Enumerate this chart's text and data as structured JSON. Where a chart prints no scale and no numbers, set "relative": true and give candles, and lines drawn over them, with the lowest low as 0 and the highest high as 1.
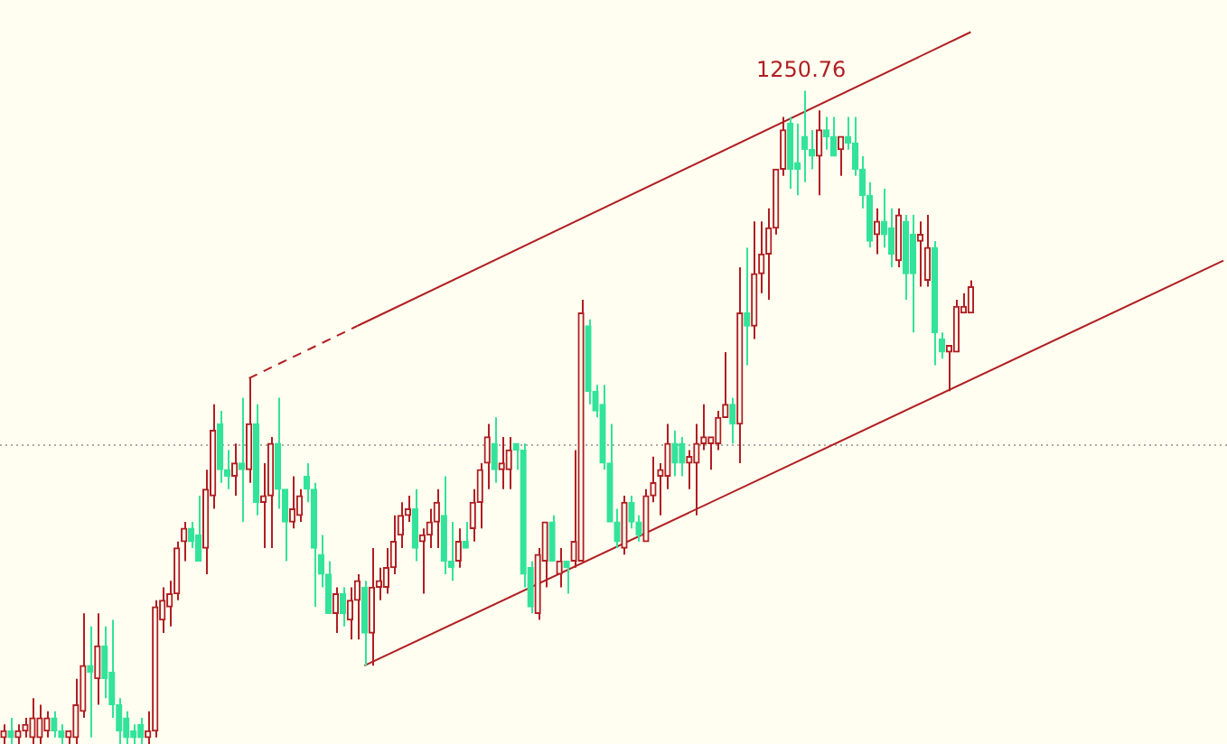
{
  "chart_data": {
    "type": "candlestick",
    "relative": true,
    "categories": [
      null,
      null,
      null,
      null,
      null,
      null,
      null,
      null,
      null,
      null,
      null,
      null,
      null,
      null,
      null,
      null,
      null,
      null,
      null,
      null,
      null,
      null,
      null,
      null,
      null,
      null,
      null,
      null,
      null,
      null,
      null,
      null,
      null,
      null,
      null,
      null,
      null,
      null,
      null,
      null,
      null,
      null,
      null,
      null,
      null,
      null,
      null,
      null,
      null,
      null,
      null,
      null,
      null,
      null,
      null,
      null,
      null,
      null,
      null,
      null,
      null,
      null,
      null,
      null,
      null,
      null,
      null,
      null,
      null,
      null,
      null,
      null,
      null,
      null,
      null,
      null,
      null,
      null,
      null,
      null,
      null,
      null,
      null,
      null,
      null,
      null,
      null,
      null,
      null,
      null,
      null,
      null,
      null,
      null,
      null,
      null,
      null,
      null,
      null,
      null,
      null,
      null,
      null,
      null,
      null,
      null,
      null,
      null,
      null,
      null,
      null,
      null,
      null,
      null,
      null,
      null,
      null,
      null,
      null,
      null,
      null,
      null,
      null,
      null,
      null,
      null,
      null,
      null,
      null,
      null,
      null,
      null,
      null,
      null,
      null,
      null,
      null,
      null,
      null,
      null,
      null,
      null,
      null,
      null,
      null,
      null,
      null,
      null,
      null,
      null,
      null,
      null,
      null,
      null,
      null,
      null,
      null,
      null,
      null,
      null,
      null,
      null,
      null,
      null,
      null,
      null,
      null,
      null,
      null,
      null
    ],
    "ohlc": [
      [
        0.01,
        0.03,
        0,
        0.02
      ],
      [
        0.02,
        0.04,
        0,
        0.01
      ],
      [
        0.01,
        0.03,
        0,
        0.02
      ],
      [
        0.02,
        0.04,
        0.01,
        0.03
      ],
      [
        0.01,
        0.07,
        0,
        0.04
      ],
      [
        0.01,
        0.06,
        0,
        0.04
      ],
      [
        0.02,
        0.05,
        0.01,
        0.04
      ],
      [
        0.04,
        0.05,
        0.01,
        0.02
      ],
      [
        0.02,
        0.03,
        0,
        0.01
      ],
      [
        0.01,
        0.02,
        0,
        0.02
      ],
      [
        0.01,
        0.1,
        0,
        0.06
      ],
      [
        0.05,
        0.2,
        0.04,
        0.12
      ],
      [
        0.12,
        0.18,
        0.01,
        0.11
      ],
      [
        0.1,
        0.2,
        0.06,
        0.15
      ],
      [
        0.15,
        0.18,
        0.07,
        0.1
      ],
      [
        0.11,
        0.19,
        0.04,
        0.06
      ],
      [
        0.06,
        0.07,
        0,
        0.02
      ],
      [
        0.04,
        0.05,
        0,
        0.01
      ],
      [
        0.02,
        0.03,
        0,
        0.01
      ],
      [
        0.03,
        0.04,
        0,
        0.01
      ],
      [
        0.01,
        0.05,
        0,
        0.02
      ],
      [
        0.02,
        0.22,
        0.01,
        0.21
      ],
      [
        0.19,
        0.24,
        0.17,
        0.22
      ],
      [
        0.21,
        0.25,
        0.18,
        0.23
      ],
      [
        0.23,
        0.31,
        0.22,
        0.3
      ],
      [
        0.31,
        0.34,
        0.28,
        0.33
      ],
      [
        0.33,
        0.34,
        0.3,
        0.31
      ],
      [
        0.32,
        0.38,
        0.28,
        0.28
      ],
      [
        0.3,
        0.42,
        0.26,
        0.39
      ],
      [
        0.38,
        0.52,
        0.36,
        0.48
      ],
      [
        0.49,
        0.51,
        0.4,
        0.42
      ],
      [
        0.42,
        0.45,
        0.39,
        0.41
      ],
      [
        0.41,
        0.46,
        0.38,
        0.43
      ],
      [
        0.43,
        0.53,
        0.34,
        0.42
      ],
      [
        0.42,
        0.56,
        0.4,
        0.49
      ],
      [
        0.49,
        0.52,
        0.35,
        0.37
      ],
      [
        0.37,
        0.43,
        0.3,
        0.38
      ],
      [
        0.38,
        0.47,
        0.3,
        0.46
      ],
      [
        0.46,
        0.53,
        0.36,
        0.39
      ],
      [
        0.39,
        0.39,
        0.28,
        0.34
      ],
      [
        0.34,
        0.41,
        0.33,
        0.36
      ],
      [
        0.35,
        0.39,
        0.34,
        0.38
      ],
      [
        0.41,
        0.43,
        0.37,
        0.39
      ],
      [
        0.39,
        0.4,
        0.21,
        0.3
      ],
      [
        0.29,
        0.32,
        0.24,
        0.26
      ],
      [
        0.26,
        0.28,
        0.2,
        0.2
      ],
      [
        0.2,
        0.24,
        0.17,
        0.23
      ],
      [
        0.23,
        0.24,
        0.18,
        0.2
      ],
      [
        0.19,
        0.24,
        0.16,
        0.22
      ],
      [
        0.22,
        0.26,
        0.16,
        0.25
      ],
      [
        0.24,
        0.25,
        0.12,
        0.17
      ],
      [
        0.17,
        0.3,
        0.12,
        0.24
      ],
      [
        0.24,
        0.27,
        0.22,
        0.25
      ],
      [
        0.24,
        0.3,
        0.23,
        0.27
      ],
      [
        0.27,
        0.35,
        0.26,
        0.31
      ],
      [
        0.32,
        0.37,
        0.3,
        0.35
      ],
      [
        0.35,
        0.38,
        0.34,
        0.36
      ],
      [
        0.36,
        0.39,
        0.28,
        0.3
      ],
      [
        0.31,
        0.33,
        0.23,
        0.32
      ],
      [
        0.32,
        0.36,
        0.3,
        0.34
      ],
      [
        0.34,
        0.39,
        0.3,
        0.37
      ],
      [
        0.35,
        0.41,
        0.26,
        0.28
      ],
      [
        0.28,
        0.34,
        0.25,
        0.27
      ],
      [
        0.28,
        0.33,
        0.27,
        0.31
      ],
      [
        0.31,
        0.34,
        0.3,
        0.3
      ],
      [
        0.33,
        0.39,
        0.31,
        0.37
      ],
      [
        0.37,
        0.43,
        0.33,
        0.42
      ],
      [
        0.43,
        0.49,
        0.39,
        0.47
      ],
      [
        0.46,
        0.5,
        0.4,
        0.42
      ],
      [
        0.42,
        0.47,
        0.39,
        0.43
      ],
      [
        0.42,
        0.47,
        0.39,
        0.45
      ],
      [
        0.46,
        0.46,
        0.42,
        0.45
      ],
      [
        0.45,
        0.46,
        0.24,
        0.26
      ],
      [
        0.27,
        0.28,
        0.2,
        0.21
      ],
      [
        0.2,
        0.3,
        0.19,
        0.29
      ],
      [
        0.28,
        0.34,
        0.24,
        0.34
      ],
      [
        0.34,
        0.35,
        0.28,
        0.28
      ],
      [
        0.26,
        0.3,
        0.24,
        0.28
      ],
      [
        0.28,
        0.28,
        0.23,
        0.27
      ],
      [
        0.28,
        0.45,
        0.27,
        0.31
      ],
      [
        0.28,
        0.68,
        0.28,
        0.66
      ],
      [
        0.64,
        0.65,
        0.52,
        0.54
      ],
      [
        0.54,
        0.55,
        0.5,
        0.51
      ],
      [
        0.52,
        0.55,
        0.42,
        0.43
      ],
      [
        0.43,
        0.49,
        0.34,
        0.34
      ],
      [
        0.34,
        0.36,
        0.3,
        0.31
      ],
      [
        0.3,
        0.38,
        0.29,
        0.37
      ],
      [
        0.37,
        0.38,
        0.33,
        0.34
      ],
      [
        0.34,
        0.35,
        0.31,
        0.32
      ],
      [
        0.31,
        0.39,
        0.31,
        0.38
      ],
      [
        0.38,
        0.44,
        0.37,
        0.4
      ],
      [
        0.41,
        0.43,
        0.35,
        0.42
      ],
      [
        0.41,
        0.49,
        0.39,
        0.46
      ],
      [
        0.46,
        0.48,
        0.41,
        0.43
      ],
      [
        0.46,
        0.47,
        0.41,
        0.43
      ],
      [
        0.43,
        0.45,
        0.39,
        0.44
      ],
      [
        0.43,
        0.49,
        0.35,
        0.46
      ],
      [
        0.46,
        0.52,
        0.45,
        0.47
      ],
      [
        0.46,
        0.47,
        0.42,
        0.47
      ],
      [
        0.46,
        0.51,
        0.45,
        0.5
      ],
      [
        0.5,
        0.6,
        0.5,
        0.52
      ],
      [
        0.52,
        0.53,
        0.46,
        0.49
      ],
      [
        0.49,
        0.73,
        0.43,
        0.66
      ],
      [
        0.66,
        0.76,
        0.58,
        0.64
      ],
      [
        0.64,
        0.8,
        0.62,
        0.72
      ],
      [
        0.72,
        0.8,
        0.69,
        0.75
      ],
      [
        0.75,
        0.82,
        0.68,
        0.79
      ],
      [
        0.79,
        0.88,
        0.78,
        0.88
      ],
      [
        0.88,
        0.96,
        0.87,
        0.94
      ],
      [
        0.95,
        0.96,
        0.85,
        0.88
      ],
      [
        0.89,
        0.95,
        0.84,
        0.88
      ],
      [
        0.93,
        1,
        0.86,
        0.91
      ],
      [
        0.91,
        0.94,
        0.88,
        0.9
      ],
      [
        0.9,
        0.97,
        0.84,
        0.94
      ],
      [
        0.94,
        0.96,
        0.91,
        0.93
      ],
      [
        0.93,
        0.96,
        0.9,
        0.9
      ],
      [
        0.91,
        0.93,
        0.87,
        0.93
      ],
      [
        0.93,
        0.96,
        0.91,
        0.92
      ],
      [
        0.92,
        0.96,
        0.87,
        0.88
      ],
      [
        0.88,
        0.9,
        0.82,
        0.84
      ],
      [
        0.84,
        0.86,
        0.76,
        0.77
      ],
      [
        0.78,
        0.82,
        0.75,
        0.8
      ],
      [
        0.8,
        0.85,
        0.76,
        0.78
      ],
      [
        0.79,
        0.82,
        0.73,
        0.75
      ],
      [
        0.74,
        0.82,
        0.73,
        0.81
      ],
      [
        0.8,
        0.81,
        0.68,
        0.72
      ],
      [
        0.78,
        0.81,
        0.63,
        0.72
      ],
      [
        0.77,
        0.8,
        0.7,
        0.78
      ],
      [
        0.71,
        0.81,
        0.7,
        0.76
      ],
      [
        0.76,
        0.77,
        0.58,
        0.63
      ],
      [
        0.62,
        0.63,
        0.59,
        0.6
      ],
      [
        0.6,
        0.61,
        0.54,
        0.61
      ],
      [
        0.6,
        0.68,
        0.6,
        0.67
      ],
      [
        0.66,
        0.69,
        0.66,
        0.67
      ],
      [
        0.66,
        0.71,
        0.66,
        0.7
      ],
      null,
      null,
      null,
      null,
      null,
      null,
      null,
      null,
      null,
      null,
      null,
      null,
      null,
      null,
      null,
      null,
      null,
      null,
      null,
      null,
      null,
      null,
      null,
      null,
      null,
      null,
      null,
      null,
      null,
      null,
      null,
      null,
      null,
      null,
      null
    ],
    "colors": [
      "#b01e23",
      "#33e39b",
      "#b01e23",
      "#b01e23",
      "#b01e23",
      "#b01e23",
      "#b01e23",
      "#33e39b",
      "#33e39b",
      "#b01e23",
      "#b01e23",
      "#b01e23",
      "#33e39b",
      "#b01e23",
      "#33e39b",
      "#33e39b",
      "#33e39b",
      "#33e39b",
      "#33e39b",
      "#33e39b",
      "#b01e23",
      "#b01e23",
      "#b01e23",
      "#b01e23",
      "#b01e23",
      "#b01e23",
      "#33e39b",
      "#33e39b",
      "#b01e23",
      "#b01e23",
      "#33e39b",
      "#33e39b",
      "#b01e23",
      "#33e39b",
      "#b01e23",
      "#33e39b",
      "#b01e23",
      "#b01e23",
      "#33e39b",
      "#33e39b",
      "#b01e23",
      "#b01e23",
      "#33e39b",
      "#33e39b",
      "#33e39b",
      "#33e39b",
      "#b01e23",
      "#33e39b",
      "#b01e23",
      "#b01e23",
      "#33e39b",
      "#b01e23",
      "#b01e23",
      "#b01e23",
      "#b01e23",
      "#b01e23",
      "#b01e23",
      "#33e39b",
      "#b01e23",
      "#b01e23",
      "#b01e23",
      "#33e39b",
      "#33e39b",
      "#b01e23",
      "#33e39b",
      "#b01e23",
      "#b01e23",
      "#b01e23",
      "#33e39b",
      "#b01e23",
      "#b01e23",
      "#33e39b",
      "#33e39b",
      "#33e39b",
      "#b01e23",
      "#b01e23",
      "#33e39b",
      "#b01e23",
      "#33e39b",
      "#b01e23",
      "#b01e23",
      "#33e39b",
      "#33e39b",
      "#33e39b",
      "#33e39b",
      "#33e39b",
      "#b01e23",
      "#33e39b",
      "#33e39b",
      "#b01e23",
      "#b01e23",
      "#b01e23",
      "#b01e23",
      "#33e39b",
      "#33e39b",
      "#b01e23",
      "#b01e23",
      "#b01e23",
      "#b01e23",
      "#b01e23",
      "#b01e23",
      "#33e39b",
      "#b01e23",
      "#33e39b",
      "#b01e23",
      "#b01e23",
      "#b01e23",
      "#b01e23",
      "#b01e23",
      "#33e39b",
      "#33e39b",
      "#33e39b",
      "#33e39b",
      "#b01e23",
      "#33e39b",
      "#33e39b",
      "#b01e23",
      "#33e39b",
      "#33e39b",
      "#33e39b",
      "#33e39b",
      "#b01e23",
      "#33e39b",
      "#33e39b",
      "#b01e23",
      "#33e39b",
      "#33e39b",
      "#b01e23",
      "#b01e23",
      "#33e39b",
      "#33e39b",
      "#b01e23",
      "#b01e23",
      "#b01e23",
      "#b01e23",
      null,
      null,
      null,
      null,
      null,
      null,
      null,
      null,
      null,
      null,
      null,
      null,
      null,
      null,
      null,
      null,
      null,
      null,
      null,
      null,
      null,
      null,
      null,
      null,
      null,
      null,
      null,
      null,
      null,
      null,
      null,
      null,
      null,
      null,
      null
    ],
    "series": [
      {
        "type": "line",
        "color": "#b01e23",
        "line_style": "dashed",
        "values": [
          null,
          null,
          null,
          null,
          null,
          null,
          null,
          null,
          null,
          null,
          null,
          null,
          null,
          null,
          null,
          null,
          null,
          null,
          null,
          null,
          null,
          null,
          null,
          null,
          null,
          null,
          null,
          null,
          null,
          null,
          null,
          null,
          null,
          null,
          0.56,
          null,
          null,
          null,
          null,
          null,
          null,
          null,
          null,
          null,
          null,
          null,
          null,
          null,
          null,
          0.64,
          null,
          null,
          null,
          null,
          null,
          null,
          null,
          null,
          null,
          null,
          null,
          null,
          null,
          null,
          null,
          null,
          null,
          null,
          null,
          null,
          null,
          null,
          null,
          null,
          null,
          null,
          null,
          null,
          null,
          null,
          null,
          null,
          null,
          null,
          null,
          null,
          null,
          null,
          null,
          null,
          null,
          null,
          null,
          null,
          null,
          null,
          null,
          null,
          null,
          null,
          null,
          null,
          null,
          null,
          null,
          null,
          null,
          null,
          null,
          null,
          null,
          null,
          null,
          null,
          null,
          null,
          null,
          null,
          null,
          null,
          null,
          null,
          null,
          null,
          null,
          null,
          null,
          null,
          null,
          null,
          null,
          null,
          null,
          null,
          null,
          null,
          null,
          null,
          null,
          null,
          null,
          null,
          null,
          null,
          null,
          null,
          null,
          null,
          null,
          null,
          null,
          null,
          null,
          null,
          null,
          null,
          null,
          null,
          null,
          null,
          null,
          null,
          null,
          null,
          null,
          null,
          null,
          null,
          null,
          null
        ]
      },
      {
        "type": "line",
        "color": "#b01e23",
        "line_style": "solid",
        "values": [
          null,
          null,
          null,
          null,
          null,
          null,
          null,
          null,
          null,
          null,
          null,
          null,
          null,
          null,
          null,
          null,
          null,
          null,
          null,
          null,
          null,
          null,
          null,
          null,
          null,
          null,
          null,
          null,
          null,
          null,
          null,
          null,
          null,
          null,
          null,
          null,
          null,
          null,
          null,
          null,
          null,
          null,
          null,
          null,
          null,
          null,
          null,
          null,
          null,
          0.64,
          null,
          null,
          null,
          null,
          null,
          null,
          null,
          null,
          null,
          null,
          null,
          null,
          null,
          null,
          null,
          null,
          null,
          null,
          null,
          null,
          null,
          null,
          null,
          null,
          null,
          null,
          null,
          null,
          null,
          null,
          null,
          null,
          null,
          null,
          null,
          null,
          null,
          null,
          null,
          null,
          null,
          null,
          null,
          null,
          null,
          null,
          null,
          null,
          null,
          null,
          null,
          null,
          null,
          null,
          null,
          null,
          null,
          null,
          null,
          null,
          null,
          null,
          null,
          null,
          null,
          null,
          null,
          null,
          null,
          null,
          null,
          null,
          null,
          null,
          null,
          null,
          null,
          null,
          null,
          null,
          null,
          null,
          null,
          null,
          1.09,
          null,
          null,
          null,
          null,
          null,
          null,
          null,
          null,
          null,
          null,
          null,
          null,
          null,
          null,
          null,
          null,
          null,
          null,
          null,
          null,
          null,
          null,
          null,
          null,
          null,
          null,
          null,
          null,
          null,
          null,
          null,
          null,
          null,
          null,
          null
        ]
      },
      {
        "type": "line",
        "color": "#b01e23",
        "line_style": "solid",
        "values": [
          null,
          null,
          null,
          null,
          null,
          null,
          null,
          null,
          null,
          null,
          null,
          null,
          null,
          null,
          null,
          null,
          null,
          null,
          null,
          null,
          null,
          null,
          null,
          null,
          null,
          null,
          null,
          null,
          null,
          null,
          null,
          null,
          null,
          null,
          null,
          null,
          null,
          null,
          null,
          null,
          null,
          null,
          null,
          null,
          null,
          null,
          null,
          null,
          null,
          null,
          0.12,
          null,
          null,
          null,
          null,
          null,
          null,
          null,
          null,
          null,
          null,
          null,
          null,
          null,
          null,
          null,
          null,
          null,
          null,
          null,
          null,
          null,
          null,
          null,
          null,
          null,
          null,
          null,
          null,
          null,
          null,
          null,
          null,
          null,
          null,
          null,
          null,
          null,
          null,
          null,
          null,
          null,
          null,
          null,
          null,
          null,
          null,
          null,
          null,
          null,
          null,
          null,
          null,
          null,
          null,
          null,
          null,
          null,
          null,
          null,
          null,
          null,
          null,
          null,
          null,
          null,
          null,
          null,
          null,
          null,
          null,
          null,
          null,
          null,
          null,
          null,
          null,
          null,
          null,
          null,
          null,
          null,
          null,
          null,
          null,
          null,
          null,
          null,
          null,
          null,
          null,
          null,
          null,
          null,
          null,
          null,
          null,
          null,
          null,
          null,
          null,
          null,
          null,
          null,
          null,
          null,
          null,
          null,
          null,
          null,
          null,
          null,
          null,
          null,
          null,
          null,
          null,
          null,
          null,
          0.74
        ]
      }
    ],
    "ref_lines": [
      {
        "axis": "y",
        "value": 0.46,
        "color": "#aaaaaa",
        "line_style": "dotted"
      }
    ],
    "annotations": [
      {
        "text": "1250.76",
        "y": 1
      }
    ]
  }
}
